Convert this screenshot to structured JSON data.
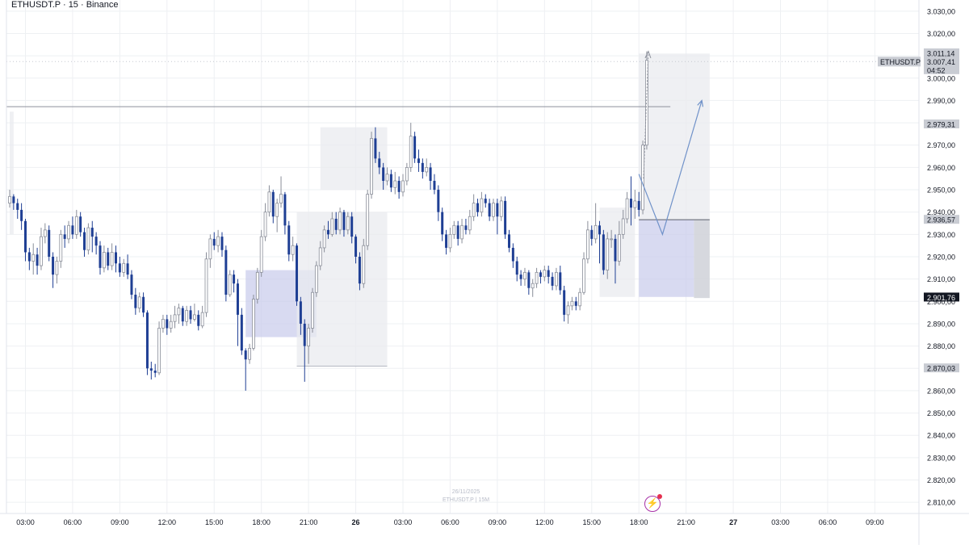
{
  "header": {
    "symbol_label": "ETHUSDT.P · 15 · Binance"
  },
  "watermark": {
    "date": "26/11/2025",
    "caption": "ETHUSDT.P | 15M"
  },
  "colors": {
    "bear_candle": "#1f3f94",
    "bull_candle": "#ffffff",
    "bull_border": "#8a8e99",
    "grid": "#eef0f3",
    "axis_text": "#131722",
    "zone_gray": "#eceef2",
    "zone_purple": "#c9cdec",
    "projection_line": "#7092c9",
    "badge_purple": "#a832a8"
  },
  "chart_data": {
    "type": "candlestick",
    "symbol": "ETHUSDT.P",
    "timeframe": "15",
    "exchange": "Binance",
    "ylim": [
      2805,
      3035
    ],
    "y_ticks": [
      "3.030,00",
      "3.020,00",
      "3.010,00",
      "3.000,00",
      "2.990,00",
      "2.980,00",
      "2.970,00",
      "2.960,00",
      "2.950,00",
      "2.940,00",
      "2.930,00",
      "2.920,00",
      "2.910,00",
      "2.900,00",
      "2.890,00",
      "2.880,00",
      "2.870,00",
      "2.860,00",
      "2.850,00",
      "2.840,00",
      "2.830,00",
      "2.820,00",
      "2.810,00"
    ],
    "y_tick_values": [
      3030,
      3020,
      3010,
      3000,
      2990,
      2980,
      2970,
      2960,
      2950,
      2940,
      2930,
      2920,
      2910,
      2900,
      2890,
      2880,
      2870,
      2860,
      2850,
      2840,
      2830,
      2820,
      2810
    ],
    "x_ticks": [
      {
        "label": "03:00",
        "bar": 4,
        "bold": false
      },
      {
        "label": "06:00",
        "bar": 16,
        "bold": false
      },
      {
        "label": "09:00",
        "bar": 28,
        "bold": false
      },
      {
        "label": "12:00",
        "bar": 40,
        "bold": false
      },
      {
        "label": "15:00",
        "bar": 52,
        "bold": false
      },
      {
        "label": "18:00",
        "bar": 64,
        "bold": false
      },
      {
        "label": "21:00",
        "bar": 76,
        "bold": false
      },
      {
        "label": "26",
        "bar": 88,
        "bold": true
      },
      {
        "label": "03:00",
        "bar": 100,
        "bold": false
      },
      {
        "label": "06:00",
        "bar": 112,
        "bold": false
      },
      {
        "label": "09:00",
        "bar": 124,
        "bold": false
      },
      {
        "label": "12:00",
        "bar": 136,
        "bold": false
      },
      {
        "label": "15:00",
        "bar": 148,
        "bold": false
      },
      {
        "label": "18:00",
        "bar": 160,
        "bold": false
      },
      {
        "label": "21:00",
        "bar": 172,
        "bold": false
      },
      {
        "label": "27",
        "bar": 184,
        "bold": true
      },
      {
        "label": "03:00",
        "bar": 196,
        "bold": false
      },
      {
        "label": "06:00",
        "bar": 208,
        "bold": false
      },
      {
        "label": "09:00",
        "bar": 220,
        "bold": false
      }
    ],
    "price_labels": [
      {
        "text": "3.011,14",
        "value": 3011.14,
        "style": "gray"
      },
      {
        "text": "3.007,41",
        "value": 3007.41,
        "style": "gray"
      },
      {
        "text": "04:52",
        "value": 3003.6,
        "style": "gray"
      },
      {
        "text": "2.979,31",
        "value": 2979.31,
        "style": "gray"
      },
      {
        "text": "2.936,57",
        "value": 2936.57,
        "style": "gray"
      },
      {
        "text": "2.901,76",
        "value": 2901.76,
        "style": "black"
      },
      {
        "text": "2.870,03",
        "value": 2870.03,
        "style": "gray"
      }
    ],
    "symbol_tag": {
      "text": "ETHUSDT.P",
      "value": 3007.41
    },
    "current_price": 3007.41,
    "horizontal_level": {
      "value": 2987.2,
      "from_bar": 0,
      "to_bar": 168
    },
    "zones": [
      {
        "kind": "gray",
        "from_bar": 0,
        "to_bar": 1,
        "top": 2985,
        "bottom": 2930
      },
      {
        "kind": "purple",
        "from_bar": 60,
        "to_bar": 78,
        "top": 2914,
        "bottom": 2884
      },
      {
        "kind": "gray",
        "from_bar": 73,
        "to_bar": 96,
        "top": 2940,
        "bottom": 2871
      },
      {
        "kind": "gray",
        "from_bar": 79,
        "to_bar": 96,
        "top": 2978,
        "bottom": 2950
      },
      {
        "kind": "gray",
        "from_bar": 150,
        "to_bar": 159,
        "top": 2942,
        "bottom": 2902
      },
      {
        "kind": "gray",
        "from_bar": 160,
        "to_bar": 178,
        "top": 3011,
        "bottom": 2936.6
      },
      {
        "kind": "purple",
        "from_bar": 160,
        "to_bar": 174,
        "top": 2936.6,
        "bottom": 2902
      },
      {
        "kind": "darkgray",
        "from_bar": 174,
        "to_bar": 178,
        "top": 2936.6,
        "bottom": 2901.5
      }
    ],
    "projection_path": [
      {
        "bar": 160,
        "y": 2957
      },
      {
        "bar": 166,
        "y": 2930
      },
      {
        "bar": 176,
        "y": 2990
      }
    ],
    "candles": [
      [
        2944,
        2947,
        2950,
        2942
      ],
      [
        2947,
        2944,
        2948,
        2941
      ],
      [
        2944,
        2941,
        2946,
        2937
      ],
      [
        2941,
        2936,
        2944,
        2932
      ],
      [
        2936,
        2922,
        2937,
        2918
      ],
      [
        2922,
        2918,
        2924,
        2914
      ],
      [
        2918,
        2921,
        2926,
        2912
      ],
      [
        2921,
        2916,
        2924,
        2912
      ],
      [
        2916,
        2929,
        2933,
        2914
      ],
      [
        2929,
        2932,
        2935,
        2926
      ],
      [
        2932,
        2920,
        2934,
        2918
      ],
      [
        2920,
        2912,
        2922,
        2906
      ],
      [
        2912,
        2918,
        2920,
        2908
      ],
      [
        2918,
        2930,
        2932,
        2915
      ],
      [
        2930,
        2928,
        2934,
        2924
      ],
      [
        2928,
        2934,
        2936,
        2926
      ],
      [
        2934,
        2930,
        2938,
        2928
      ],
      [
        2930,
        2938,
        2941,
        2928
      ],
      [
        2938,
        2931,
        2940,
        2929
      ],
      [
        2931,
        2923,
        2933,
        2920
      ],
      [
        2923,
        2933,
        2935,
        2921
      ],
      [
        2933,
        2929,
        2936,
        2922
      ],
      [
        2929,
        2925,
        2931,
        2921
      ],
      [
        2925,
        2915,
        2927,
        2912
      ],
      [
        2915,
        2922,
        2925,
        2913
      ],
      [
        2922,
        2916,
        2924,
        2914
      ],
      [
        2916,
        2922,
        2926,
        2914
      ],
      [
        2922,
        2917,
        2925,
        2913
      ],
      [
        2917,
        2913,
        2920,
        2911
      ],
      [
        2913,
        2917,
        2919,
        2911
      ],
      [
        2917,
        2912,
        2921,
        2910
      ],
      [
        2912,
        2903,
        2914,
        2901
      ],
      [
        2903,
        2897,
        2906,
        2894
      ],
      [
        2897,
        2902,
        2904,
        2895
      ],
      [
        2902,
        2895,
        2904,
        2893
      ],
      [
        2895,
        2870,
        2896,
        2867
      ],
      [
        2870,
        2869,
        2873,
        2865
      ],
      [
        2869,
        2868,
        2872,
        2866
      ],
      [
        2868,
        2888,
        2891,
        2867
      ],
      [
        2888,
        2892,
        2894,
        2886
      ],
      [
        2892,
        2888,
        2894,
        2885
      ],
      [
        2888,
        2891,
        2894,
        2886
      ],
      [
        2891,
        2894,
        2898,
        2888
      ],
      [
        2894,
        2897,
        2899,
        2890
      ],
      [
        2897,
        2891,
        2898,
        2889
      ],
      [
        2891,
        2896,
        2898,
        2889
      ],
      [
        2896,
        2892,
        2898,
        2890
      ],
      [
        2892,
        2894,
        2899,
        2891
      ],
      [
        2894,
        2889,
        2896,
        2887
      ],
      [
        2889,
        2895,
        2898,
        2888
      ],
      [
        2895,
        2919,
        2922,
        2893
      ],
      [
        2919,
        2928,
        2930,
        2915
      ],
      [
        2928,
        2925,
        2931,
        2923
      ],
      [
        2925,
        2929,
        2932,
        2922
      ],
      [
        2929,
        2923,
        2931,
        2920
      ],
      [
        2923,
        2903,
        2925,
        2900
      ],
      [
        2903,
        2912,
        2914,
        2902
      ],
      [
        2912,
        2908,
        2914,
        2904
      ],
      [
        2908,
        2894,
        2910,
        2880
      ],
      [
        2894,
        2878,
        2897,
        2876
      ],
      [
        2878,
        2874,
        2879,
        2860
      ],
      [
        2874,
        2879,
        2881,
        2872
      ],
      [
        2879,
        2901,
        2903,
        2878
      ],
      [
        2901,
        2913,
        2915,
        2899
      ],
      [
        2913,
        2929,
        2932,
        2911
      ],
      [
        2929,
        2940,
        2944,
        2927
      ],
      [
        2940,
        2949,
        2952,
        2938
      ],
      [
        2949,
        2938,
        2950,
        2935
      ],
      [
        2938,
        2944,
        2946,
        2931
      ],
      [
        2944,
        2948,
        2956,
        2942
      ],
      [
        2948,
        2934,
        2949,
        2930
      ],
      [
        2934,
        2921,
        2936,
        2918
      ],
      [
        2921,
        2925,
        2929,
        2918
      ],
      [
        2925,
        2900,
        2926,
        2898
      ],
      [
        2900,
        2890,
        2902,
        2885
      ],
      [
        2890,
        2880,
        2892,
        2864
      ],
      [
        2880,
        2888,
        2890,
        2872
      ],
      [
        2888,
        2904,
        2906,
        2886
      ],
      [
        2904,
        2916,
        2918,
        2902
      ],
      [
        2916,
        2924,
        2927,
        2914
      ],
      [
        2924,
        2932,
        2934,
        2922
      ],
      [
        2932,
        2930,
        2936,
        2928
      ],
      [
        2930,
        2937,
        2940,
        2929
      ],
      [
        2937,
        2932,
        2940,
        2930
      ],
      [
        2932,
        2940,
        2942,
        2930
      ],
      [
        2940,
        2932,
        2941,
        2929
      ],
      [
        2932,
        2938,
        2940,
        2930
      ],
      [
        2938,
        2929,
        2940,
        2926
      ],
      [
        2929,
        2920,
        2930,
        2917
      ],
      [
        2920,
        2908,
        2922,
        2905
      ],
      [
        2908,
        2925,
        2928,
        2906
      ],
      [
        2925,
        2948,
        2950,
        2923
      ],
      [
        2948,
        2973,
        2976,
        2946
      ],
      [
        2973,
        2964,
        2978,
        2962
      ],
      [
        2964,
        2960,
        2967,
        2957
      ],
      [
        2960,
        2954,
        2962,
        2950
      ],
      [
        2954,
        2957,
        2960,
        2952
      ],
      [
        2957,
        2951,
        2959,
        2949
      ],
      [
        2951,
        2954,
        2958,
        2948
      ],
      [
        2954,
        2949,
        2956,
        2946
      ],
      [
        2949,
        2954,
        2957,
        2947
      ],
      [
        2954,
        2960,
        2962,
        2952
      ],
      [
        2960,
        2974,
        2980,
        2958
      ],
      [
        2974,
        2964,
        2976,
        2962
      ],
      [
        2964,
        2962,
        2968,
        2958
      ],
      [
        2962,
        2958,
        2964,
        2955
      ],
      [
        2958,
        2960,
        2964,
        2956
      ],
      [
        2960,
        2954,
        2962,
        2950
      ],
      [
        2954,
        2950,
        2957,
        2948
      ],
      [
        2950,
        2940,
        2952,
        2936
      ],
      [
        2940,
        2930,
        2942,
        2927
      ],
      [
        2930,
        2924,
        2932,
        2921
      ],
      [
        2924,
        2930,
        2933,
        2922
      ],
      [
        2930,
        2934,
        2936,
        2928
      ],
      [
        2934,
        2928,
        2936,
        2925
      ],
      [
        2928,
        2934,
        2937,
        2926
      ],
      [
        2934,
        2932,
        2937,
        2930
      ],
      [
        2932,
        2938,
        2941,
        2930
      ],
      [
        2938,
        2944,
        2948,
        2936
      ],
      [
        2944,
        2940,
        2946,
        2938
      ],
      [
        2940,
        2946,
        2949,
        2938
      ],
      [
        2946,
        2944,
        2948,
        2942
      ],
      [
        2944,
        2938,
        2946,
        2936
      ],
      [
        2938,
        2944,
        2946,
        2936
      ],
      [
        2944,
        2938,
        2946,
        2930
      ],
      [
        2938,
        2945,
        2947,
        2936
      ],
      [
        2945,
        2930,
        2947,
        2928
      ],
      [
        2930,
        2924,
        2932,
        2922
      ],
      [
        2924,
        2918,
        2926,
        2915
      ],
      [
        2918,
        2912,
        2920,
        2909
      ],
      [
        2912,
        2910,
        2914,
        2907
      ],
      [
        2910,
        2913,
        2915,
        2907
      ],
      [
        2913,
        2906,
        2914,
        2903
      ],
      [
        2906,
        2908,
        2910,
        2902
      ],
      [
        2908,
        2913,
        2915,
        2906
      ],
      [
        2913,
        2911,
        2914,
        2908
      ],
      [
        2911,
        2914,
        2916,
        2909
      ],
      [
        2914,
        2911,
        2916,
        2908
      ],
      [
        2911,
        2907,
        2913,
        2905
      ],
      [
        2907,
        2913,
        2915,
        2905
      ],
      [
        2913,
        2905,
        2916,
        2903
      ],
      [
        2905,
        2894,
        2907,
        2891
      ],
      [
        2894,
        2898,
        2900,
        2890
      ],
      [
        2898,
        2900,
        2902,
        2896
      ],
      [
        2900,
        2898,
        2902,
        2896
      ],
      [
        2898,
        2904,
        2906,
        2896
      ],
      [
        2904,
        2919,
        2922,
        2903
      ],
      [
        2919,
        2932,
        2936,
        2917
      ],
      [
        2932,
        2928,
        2934,
        2925
      ],
      [
        2928,
        2934,
        2944,
        2926
      ],
      [
        2934,
        2930,
        2936,
        2917
      ],
      [
        2930,
        2914,
        2932,
        2912
      ],
      [
        2914,
        2928,
        2931,
        2910
      ],
      [
        2928,
        2928,
        2932,
        2924
      ],
      [
        2928,
        2918,
        2930,
        2908
      ],
      [
        2918,
        2930,
        2936,
        2916
      ],
      [
        2930,
        2937,
        2941,
        2928
      ],
      [
        2937,
        2946,
        2949,
        2935
      ],
      [
        2946,
        2942,
        2956,
        2934
      ],
      [
        2942,
        2945,
        2950,
        2937
      ],
      [
        2945,
        2941,
        2949,
        2938
      ],
      [
        2941,
        2970,
        2972,
        2939
      ],
      [
        2970,
        3008,
        3012,
        2968
      ]
    ]
  }
}
